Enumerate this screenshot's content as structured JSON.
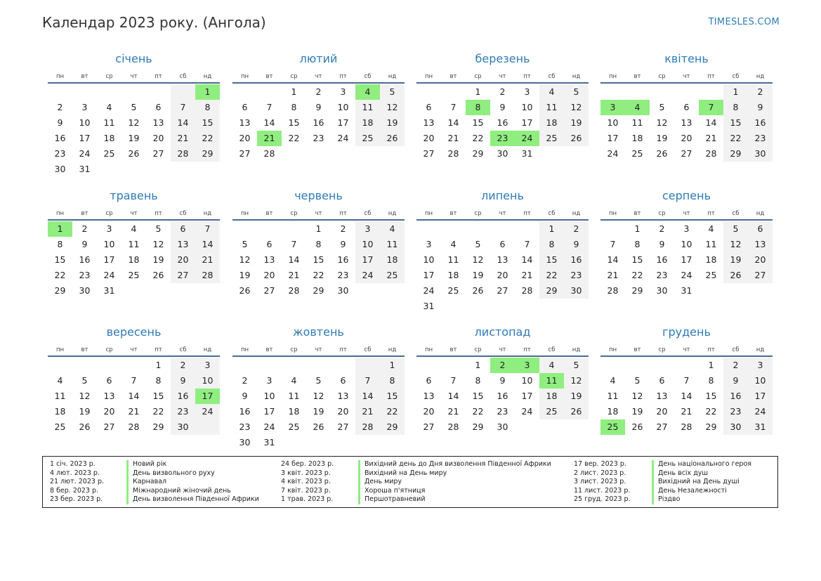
{
  "title": "Календар 2023 року. (Ангола)",
  "site": "TIMESLES.COM",
  "colors": {
    "accent": "#2e7bb8",
    "holiday": "#8fee7f",
    "weekend_bg": "#f2f2f2",
    "line": "#4a6a94"
  },
  "weekdays": [
    "пн",
    "вт",
    "ср",
    "чт",
    "пт",
    "сб",
    "нд"
  ],
  "months": [
    {
      "name": "січень",
      "offset": 6,
      "days": 31,
      "holidays": [
        1
      ]
    },
    {
      "name": "лютий",
      "offset": 2,
      "days": 28,
      "holidays": [
        4,
        21
      ]
    },
    {
      "name": "березень",
      "offset": 2,
      "days": 31,
      "holidays": [
        8,
        23,
        24
      ]
    },
    {
      "name": "квітень",
      "offset": 5,
      "days": 30,
      "holidays": [
        3,
        4,
        7
      ]
    },
    {
      "name": "травень",
      "offset": 0,
      "days": 31,
      "holidays": [
        1
      ]
    },
    {
      "name": "червень",
      "offset": 3,
      "days": 30,
      "holidays": []
    },
    {
      "name": "липень",
      "offset": 5,
      "days": 31,
      "holidays": []
    },
    {
      "name": "серпень",
      "offset": 1,
      "days": 31,
      "holidays": []
    },
    {
      "name": "вересень",
      "offset": 4,
      "days": 30,
      "holidays": [
        17
      ]
    },
    {
      "name": "жовтень",
      "offset": 6,
      "days": 31,
      "holidays": []
    },
    {
      "name": "листопад",
      "offset": 2,
      "days": 30,
      "holidays": [
        2,
        3,
        11
      ]
    },
    {
      "name": "грудень",
      "offset": 4,
      "days": 31,
      "holidays": [
        25
      ]
    }
  ],
  "legend": [
    [
      {
        "date": "1 січ. 2023 р.",
        "name": "Новий рік"
      },
      {
        "date": "4 лют. 2023 р.",
        "name": "День визвольного руху"
      },
      {
        "date": "21 лют. 2023 р.",
        "name": "Карнавал"
      },
      {
        "date": "8 бер. 2023 р.",
        "name": "Міжнародний жіночий день"
      },
      {
        "date": "23 бер. 2023 р.",
        "name": "День визволення Південної Африки"
      }
    ],
    [
      {
        "date": "24 бер. 2023 р.",
        "name": "Вихідний день до Дня визволення Південної Африки"
      },
      {
        "date": "3 квіт. 2023 р.",
        "name": "Вихідний на День миру"
      },
      {
        "date": "4 квіт. 2023 р.",
        "name": "День миру"
      },
      {
        "date": "7 квіт. 2023 р.",
        "name": "Хороша п'ятниця"
      },
      {
        "date": "1 трав. 2023 р.",
        "name": "Першотравневий"
      }
    ],
    [
      {
        "date": "17 вер. 2023 р.",
        "name": "День національного героя"
      },
      {
        "date": "2 лист. 2023 р.",
        "name": "День всіх душ"
      },
      {
        "date": "3 лист. 2023 р.",
        "name": "Вихідний на День душі"
      },
      {
        "date": "11 лист. 2023 р.",
        "name": "День Незалежності"
      },
      {
        "date": "25 груд. 2023 р.",
        "name": "Різдво"
      }
    ]
  ]
}
